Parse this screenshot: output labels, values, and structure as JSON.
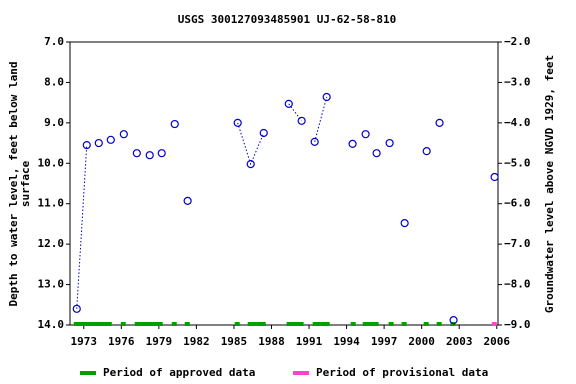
{
  "chart_data": {
    "type": "line",
    "title": "USGS 300127093485901 UJ-62-58-810",
    "y_label": [
      "Depth to water level, feet below land",
      "surface"
    ],
    "y2_label": "Groundwater level above NGVD 1929, feet",
    "xlim": [
      1971.9,
      2006.1
    ],
    "xticks": [
      1973,
      1976,
      1979,
      1982,
      1985,
      1988,
      1991,
      1994,
      1997,
      2000,
      2003,
      2006
    ],
    "ylim": [
      7,
      14
    ],
    "yticks": [
      {
        "value": 7,
        "label": "7.0"
      },
      {
        "value": 8,
        "label": "8.0"
      },
      {
        "value": 9,
        "label": "9.0"
      },
      {
        "value": 10,
        "label": "10.0"
      },
      {
        "value": 11,
        "label": "11.0"
      },
      {
        "value": 12,
        "label": "12.0"
      },
      {
        "value": 13,
        "label": "13.0"
      },
      {
        "value": 14,
        "label": "14.0"
      }
    ],
    "y2lim": [
      -2,
      -9
    ],
    "y2ticks": [
      {
        "value": -2,
        "label": "−2.0"
      },
      {
        "value": -3,
        "label": "−3.0"
      },
      {
        "value": -4,
        "label": "−4.0"
      },
      {
        "value": -5,
        "label": "−5.0"
      },
      {
        "value": -6,
        "label": "−6.0"
      },
      {
        "value": -7,
        "label": "−7.0"
      },
      {
        "value": -8,
        "label": "−8.0"
      },
      {
        "value": -9,
        "label": "−9.0"
      }
    ],
    "series": [
      {
        "color": "#0000cc",
        "x": [
          1972.44,
          1973.24,
          null,
          1974.2,
          null,
          1975.16,
          null,
          1976.2,
          null,
          1977.24,
          null,
          1978.27,
          null,
          1979.23,
          null,
          1980.27,
          null,
          1981.3,
          null,
          1985.3,
          1986.34,
          1987.38,
          null,
          1989.38,
          1990.41,
          null,
          1991.45,
          1992.41,
          null,
          1994.48,
          null,
          1995.52,
          null,
          1996.4,
          null,
          1997.44,
          null,
          1998.64,
          null,
          2000.4,
          null,
          2001.43,
          null,
          2002.55,
          null,
          2005.83
        ],
        "values": [
          13.6,
          9.55,
          null,
          9.5,
          null,
          9.42,
          null,
          9.28,
          null,
          9.75,
          null,
          9.8,
          null,
          9.75,
          null,
          9.03,
          null,
          10.93,
          null,
          9.0,
          10.02,
          9.25,
          null,
          8.53,
          8.95,
          null,
          9.47,
          8.36,
          null,
          9.52,
          null,
          9.28,
          null,
          9.75,
          null,
          9.5,
          null,
          11.48,
          null,
          9.7,
          null,
          9.0,
          null,
          13.88,
          null,
          10.34
        ]
      }
    ],
    "periods": [
      {
        "name": "Period of approved data",
        "color": "#00a000",
        "ranges": [
          [
            1972.2,
            1975.24
          ],
          [
            1975.96,
            1976.35
          ],
          [
            1977.07,
            1979.31
          ],
          [
            1980.03,
            1980.43
          ],
          [
            1981.07,
            1981.47
          ],
          [
            1985.06,
            1985.46
          ],
          [
            1986.1,
            1987.54
          ],
          [
            1989.21,
            1990.57
          ],
          [
            1991.29,
            1992.65
          ],
          [
            1994.33,
            1994.73
          ],
          [
            1995.29,
            1996.56
          ],
          [
            1997.36,
            1997.76
          ],
          [
            1998.4,
            1998.8
          ],
          [
            2000.16,
            2000.56
          ],
          [
            2001.2,
            2001.6
          ],
          [
            2002.3,
            2002.7
          ]
        ]
      },
      {
        "name": "Period of provisional data",
        "color": "#ff44cc",
        "ranges": [
          [
            2005.6,
            2006.0
          ]
        ]
      }
    ]
  }
}
